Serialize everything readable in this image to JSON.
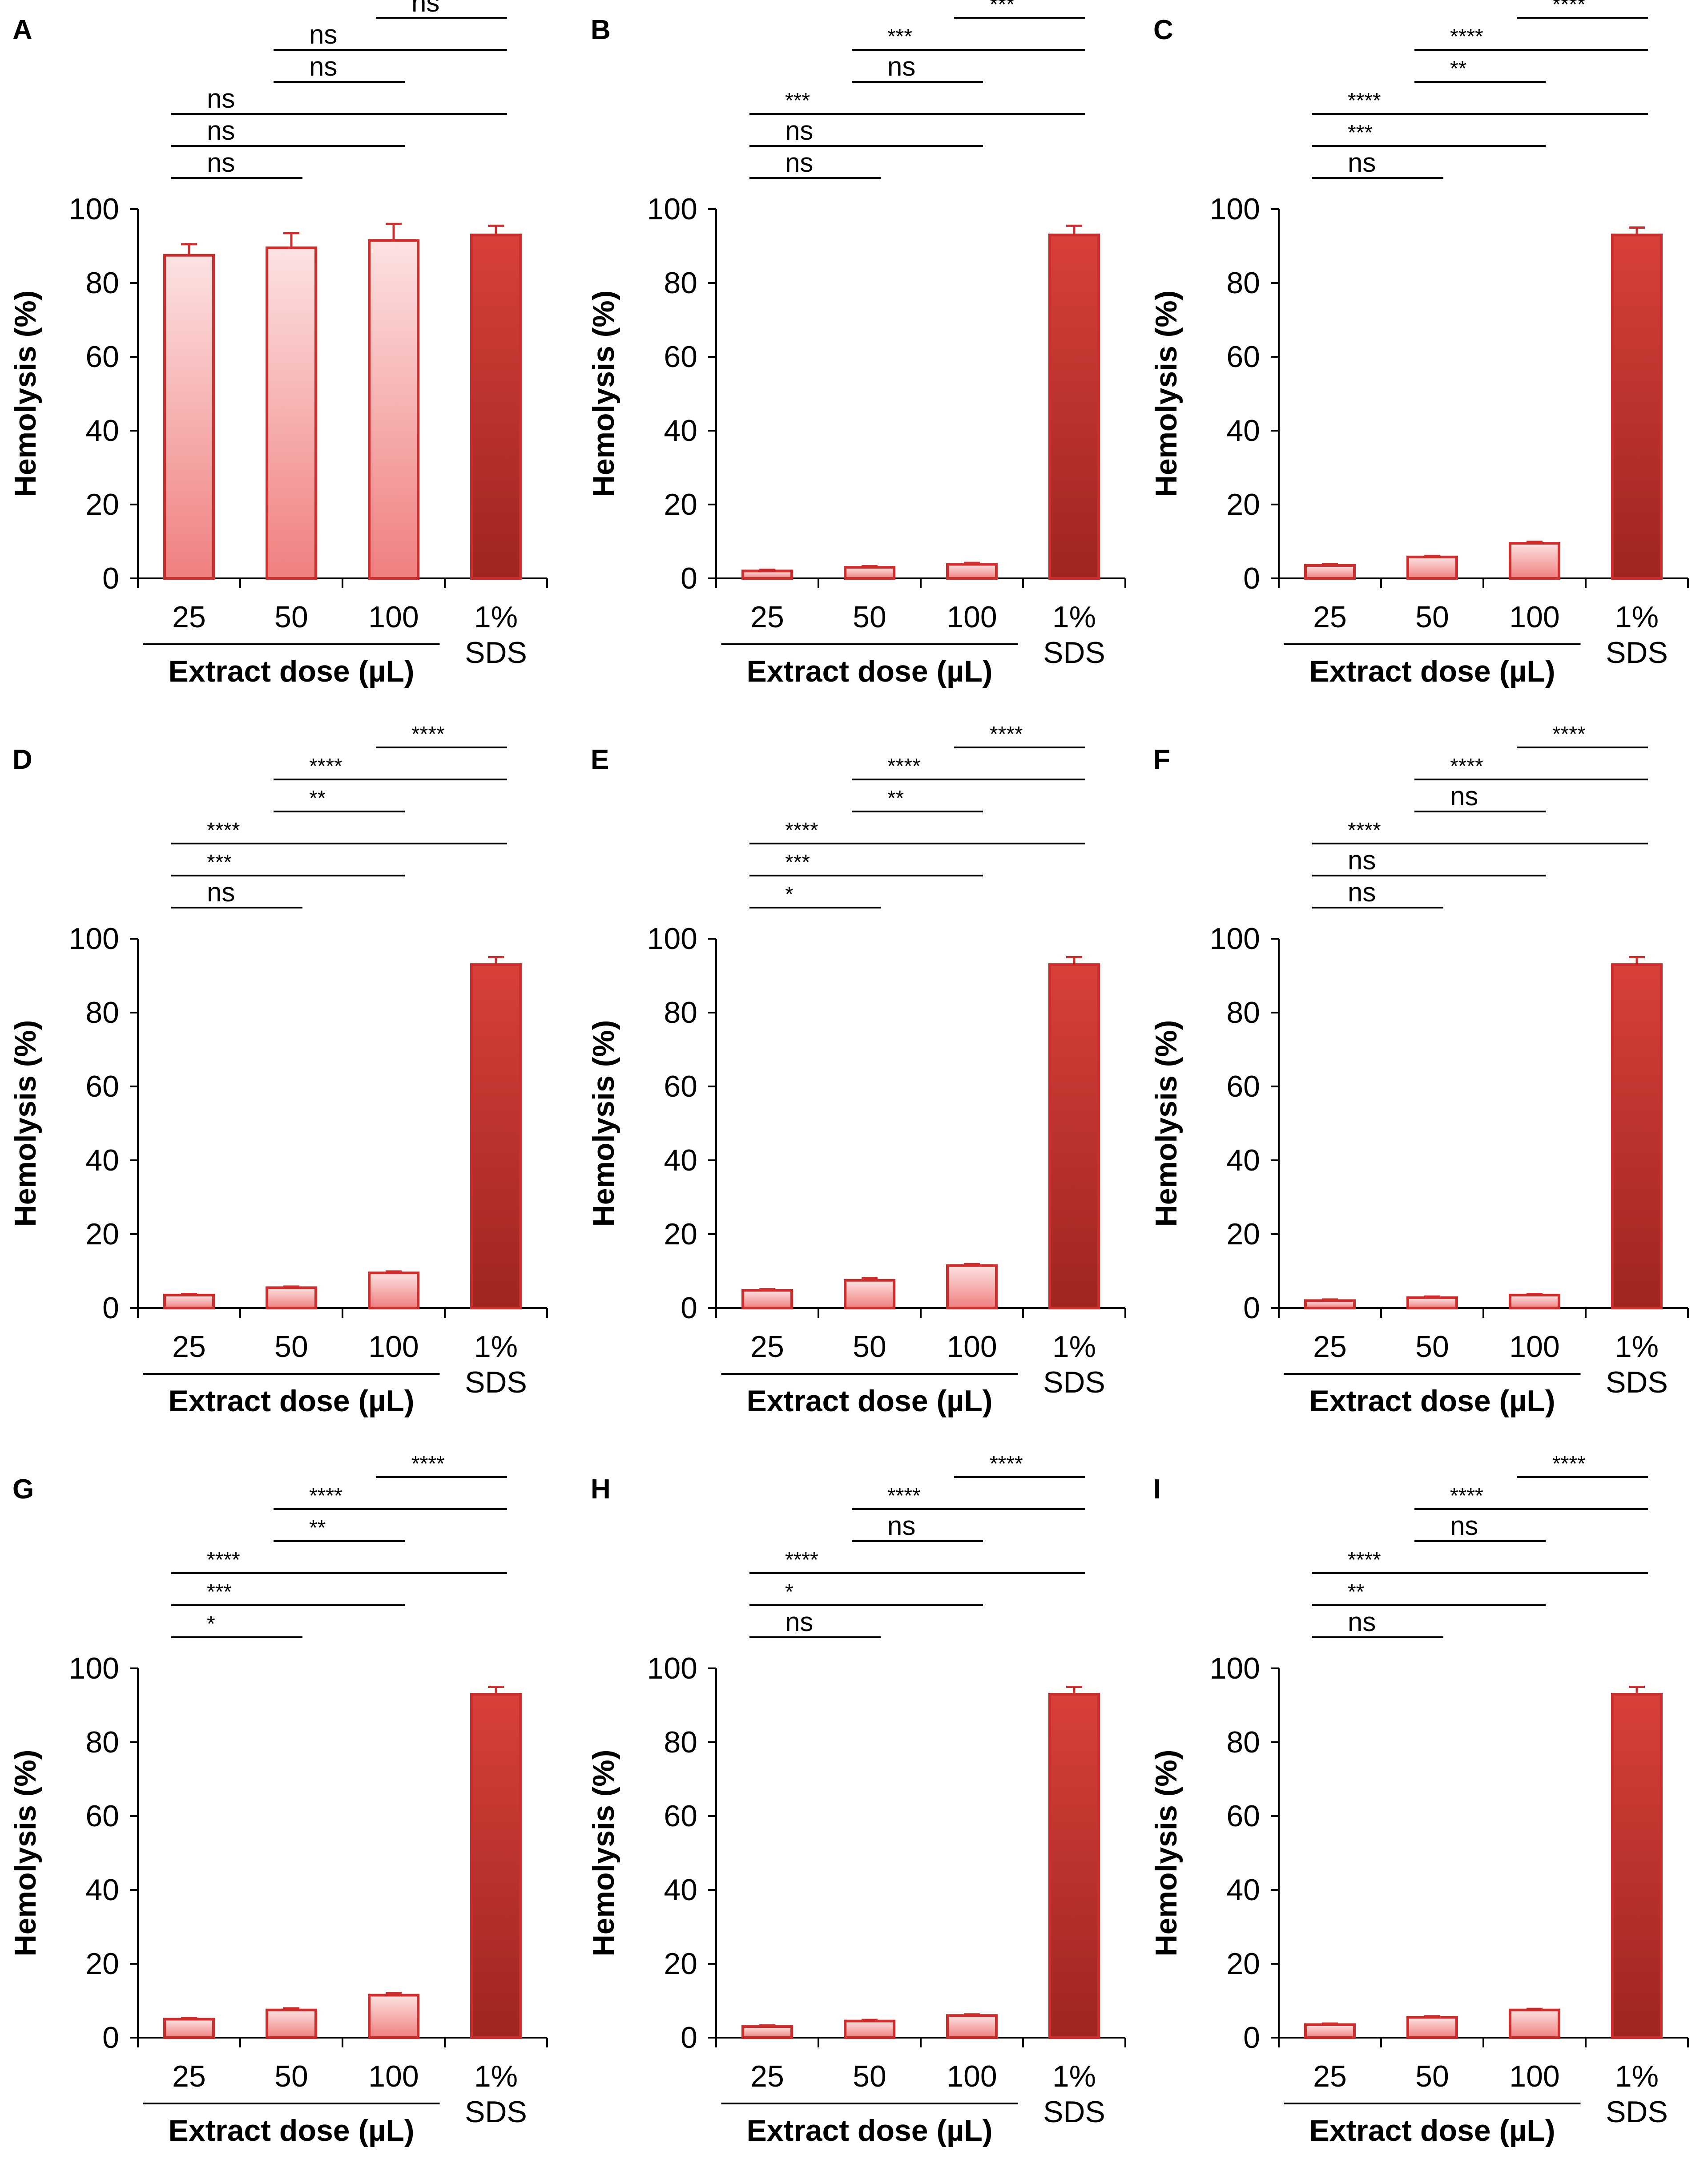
{
  "figure": {
    "layout": "3x3 grid of bar charts",
    "bar_colors": {
      "extract_light": "#fde2e2",
      "extract_mid": "#f07f7f",
      "sds_light": "#d9403a",
      "sds_dark": "#9e2520",
      "outline": "#cc2e2e",
      "text": "#000000"
    }
  },
  "chart_data": [
    {
      "panel": "A",
      "type": "bar",
      "categories": [
        "25",
        "50",
        "100",
        "1%"
      ],
      "category_sublabels": [
        "",
        "",
        "",
        "SDS"
      ],
      "values": [
        87.5,
        89.5,
        91.5,
        93.0
      ],
      "errors": [
        3.0,
        4.0,
        4.5,
        2.5
      ],
      "ylabel": "Hemolysis (%)",
      "xlabel": "Extract dose (µL)",
      "ylim": [
        0,
        100
      ],
      "yticks": [
        0,
        20,
        40,
        60,
        80,
        100
      ],
      "significance": [
        {
          "from": 0,
          "to": 1,
          "label": "ns"
        },
        {
          "from": 0,
          "to": 2,
          "label": "ns"
        },
        {
          "from": 0,
          "to": 3,
          "label": "ns"
        },
        {
          "from": 1,
          "to": 2,
          "label": "ns"
        },
        {
          "from": 1,
          "to": 3,
          "label": "ns"
        },
        {
          "from": 2,
          "to": 3,
          "label": "ns"
        }
      ]
    },
    {
      "panel": "B",
      "type": "bar",
      "categories": [
        "25",
        "50",
        "100",
        "1%"
      ],
      "category_sublabels": [
        "",
        "",
        "",
        "SDS"
      ],
      "values": [
        2.0,
        3.0,
        3.8,
        93.0
      ],
      "errors": [
        0.3,
        0.3,
        0.4,
        2.5
      ],
      "ylabel": "Hemolysis (%)",
      "xlabel": "Extract dose (µL)",
      "ylim": [
        0,
        100
      ],
      "yticks": [
        0,
        20,
        40,
        60,
        80,
        100
      ],
      "significance": [
        {
          "from": 0,
          "to": 1,
          "label": "ns"
        },
        {
          "from": 0,
          "to": 2,
          "label": "ns"
        },
        {
          "from": 0,
          "to": 3,
          "label": "***"
        },
        {
          "from": 1,
          "to": 2,
          "label": "ns"
        },
        {
          "from": 1,
          "to": 3,
          "label": "***"
        },
        {
          "from": 2,
          "to": 3,
          "label": "***"
        }
      ]
    },
    {
      "panel": "C",
      "type": "bar",
      "categories": [
        "25",
        "50",
        "100",
        "1%"
      ],
      "category_sublabels": [
        "",
        "",
        "",
        "SDS"
      ],
      "values": [
        3.5,
        5.8,
        9.5,
        93.0
      ],
      "errors": [
        0.3,
        0.3,
        0.4,
        2.0
      ],
      "ylabel": "Hemolysis (%)",
      "xlabel": "Extract dose (µL)",
      "ylim": [
        0,
        100
      ],
      "yticks": [
        0,
        20,
        40,
        60,
        80,
        100
      ],
      "significance": [
        {
          "from": 0,
          "to": 1,
          "label": "ns"
        },
        {
          "from": 0,
          "to": 2,
          "label": "***"
        },
        {
          "from": 0,
          "to": 3,
          "label": "****"
        },
        {
          "from": 1,
          "to": 2,
          "label": "**"
        },
        {
          "from": 1,
          "to": 3,
          "label": "****"
        },
        {
          "from": 2,
          "to": 3,
          "label": "****"
        }
      ]
    },
    {
      "panel": "D",
      "type": "bar",
      "categories": [
        "25",
        "50",
        "100",
        "1%"
      ],
      "category_sublabels": [
        "",
        "",
        "",
        "SDS"
      ],
      "values": [
        3.5,
        5.5,
        9.5,
        93.0
      ],
      "errors": [
        0.3,
        0.3,
        0.4,
        2.0
      ],
      "ylabel": "Hemolysis (%)",
      "xlabel": "Extract dose (µL)",
      "ylim": [
        0,
        100
      ],
      "yticks": [
        0,
        20,
        40,
        60,
        80,
        100
      ],
      "significance": [
        {
          "from": 0,
          "to": 1,
          "label": "ns"
        },
        {
          "from": 0,
          "to": 2,
          "label": "***"
        },
        {
          "from": 0,
          "to": 3,
          "label": "****"
        },
        {
          "from": 1,
          "to": 2,
          "label": "**"
        },
        {
          "from": 1,
          "to": 3,
          "label": "****"
        },
        {
          "from": 2,
          "to": 3,
          "label": "****"
        }
      ]
    },
    {
      "panel": "E",
      "type": "bar",
      "categories": [
        "25",
        "50",
        "100",
        "1%"
      ],
      "category_sublabels": [
        "",
        "",
        "",
        "SDS"
      ],
      "values": [
        4.8,
        7.5,
        11.5,
        93.0
      ],
      "errors": [
        0.3,
        0.6,
        0.4,
        2.0
      ],
      "ylabel": "Hemolysis (%)",
      "xlabel": "Extract dose (µL)",
      "ylim": [
        0,
        100
      ],
      "yticks": [
        0,
        20,
        40,
        60,
        80,
        100
      ],
      "significance": [
        {
          "from": 0,
          "to": 1,
          "label": "*"
        },
        {
          "from": 0,
          "to": 2,
          "label": "***"
        },
        {
          "from": 0,
          "to": 3,
          "label": "****"
        },
        {
          "from": 1,
          "to": 2,
          "label": "**"
        },
        {
          "from": 1,
          "to": 3,
          "label": "****"
        },
        {
          "from": 2,
          "to": 3,
          "label": "****"
        }
      ]
    },
    {
      "panel": "F",
      "type": "bar",
      "categories": [
        "25",
        "50",
        "100",
        "1%"
      ],
      "category_sublabels": [
        "",
        "",
        "",
        "SDS"
      ],
      "values": [
        2.0,
        2.8,
        3.5,
        93.0
      ],
      "errors": [
        0.3,
        0.3,
        0.3,
        2.0
      ],
      "ylabel": "Hemolysis (%)",
      "xlabel": "Extract dose (µL)",
      "ylim": [
        0,
        100
      ],
      "yticks": [
        0,
        20,
        40,
        60,
        80,
        100
      ],
      "significance": [
        {
          "from": 0,
          "to": 1,
          "label": "ns"
        },
        {
          "from": 0,
          "to": 2,
          "label": "ns"
        },
        {
          "from": 0,
          "to": 3,
          "label": "****"
        },
        {
          "from": 1,
          "to": 2,
          "label": "ns"
        },
        {
          "from": 1,
          "to": 3,
          "label": "****"
        },
        {
          "from": 2,
          "to": 3,
          "label": "****"
        }
      ]
    },
    {
      "panel": "G",
      "type": "bar",
      "categories": [
        "25",
        "50",
        "100",
        "1%"
      ],
      "category_sublabels": [
        "",
        "",
        "",
        "SDS"
      ],
      "values": [
        5.0,
        7.5,
        11.5,
        93.0
      ],
      "errors": [
        0.3,
        0.4,
        0.6,
        2.0
      ],
      "ylabel": "Hemolysis (%)",
      "xlabel": "Extract dose (µL)",
      "ylim": [
        0,
        100
      ],
      "yticks": [
        0,
        20,
        40,
        60,
        80,
        100
      ],
      "significance": [
        {
          "from": 0,
          "to": 1,
          "label": "*"
        },
        {
          "from": 0,
          "to": 2,
          "label": "***"
        },
        {
          "from": 0,
          "to": 3,
          "label": "****"
        },
        {
          "from": 1,
          "to": 2,
          "label": "**"
        },
        {
          "from": 1,
          "to": 3,
          "label": "****"
        },
        {
          "from": 2,
          "to": 3,
          "label": "****"
        }
      ]
    },
    {
      "panel": "H",
      "type": "bar",
      "categories": [
        "25",
        "50",
        "100",
        "1%"
      ],
      "category_sublabels": [
        "",
        "",
        "",
        "SDS"
      ],
      "values": [
        3.0,
        4.5,
        6.0,
        93.0
      ],
      "errors": [
        0.3,
        0.3,
        0.3,
        2.0
      ],
      "ylabel": "Hemolysis (%)",
      "xlabel": "Extract dose (µL)",
      "ylim": [
        0,
        100
      ],
      "yticks": [
        0,
        20,
        40,
        60,
        80,
        100
      ],
      "significance": [
        {
          "from": 0,
          "to": 1,
          "label": "ns"
        },
        {
          "from": 0,
          "to": 2,
          "label": "*"
        },
        {
          "from": 0,
          "to": 3,
          "label": "****"
        },
        {
          "from": 1,
          "to": 2,
          "label": "ns"
        },
        {
          "from": 1,
          "to": 3,
          "label": "****"
        },
        {
          "from": 2,
          "to": 3,
          "label": "****"
        }
      ]
    },
    {
      "panel": "I",
      "type": "bar",
      "categories": [
        "25",
        "50",
        "100",
        "1%"
      ],
      "category_sublabels": [
        "",
        "",
        "",
        "SDS"
      ],
      "values": [
        3.5,
        5.5,
        7.5,
        93.0
      ],
      "errors": [
        0.3,
        0.3,
        0.3,
        2.0
      ],
      "ylabel": "Hemolysis (%)",
      "xlabel": "Extract dose (µL)",
      "ylim": [
        0,
        100
      ],
      "yticks": [
        0,
        20,
        40,
        60,
        80,
        100
      ],
      "significance": [
        {
          "from": 0,
          "to": 1,
          "label": "ns"
        },
        {
          "from": 0,
          "to": 2,
          "label": "**"
        },
        {
          "from": 0,
          "to": 3,
          "label": "****"
        },
        {
          "from": 1,
          "to": 2,
          "label": "ns"
        },
        {
          "from": 1,
          "to": 3,
          "label": "****"
        },
        {
          "from": 2,
          "to": 3,
          "label": "****"
        }
      ]
    }
  ]
}
